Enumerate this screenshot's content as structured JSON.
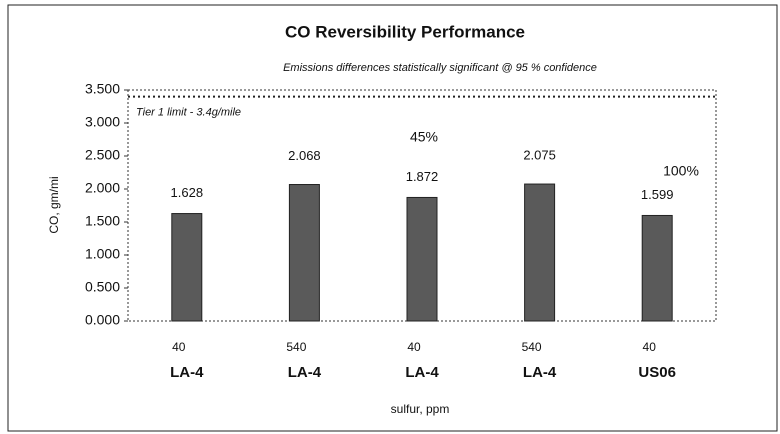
{
  "chart_data": {
    "type": "bar",
    "title": "CO Reversibility Performance",
    "subtitle": "Emissions differences statistically significant @ 95 % confidence",
    "x_label": "sulfur, ppm",
    "y_label": "CO, gm/mi",
    "categories": [
      "40",
      "540",
      "40",
      "540",
      "40"
    ],
    "groups": [
      "LA-4",
      "LA-4",
      "LA-4",
      "LA-4",
      "US06"
    ],
    "values": [
      1.628,
      2.068,
      1.872,
      2.075,
      1.599
    ],
    "value_labels": [
      "1.628",
      "2.068",
      "1.872",
      "2.075",
      "1.599"
    ],
    "color": "#5a5a5a",
    "ylim": [
      0,
      3.5
    ],
    "yticks": [
      {
        "value": 0,
        "label": "0.000"
      },
      {
        "value": 0.5,
        "label": "0.500"
      },
      {
        "value": 1,
        "label": "1.000"
      },
      {
        "value": 1.5,
        "label": "1.500"
      },
      {
        "value": 2,
        "label": "2.000"
      },
      {
        "value": 2.5,
        "label": "2.500"
      },
      {
        "value": 3,
        "label": "3.000"
      },
      {
        "value": 3.5,
        "label": "3.500"
      }
    ],
    "reference_line": {
      "value": 3.4,
      "label": "Tier 1 limit - 3.4g/mile"
    },
    "annotations": [
      "45%",
      "100%"
    ],
    "grid": false
  }
}
